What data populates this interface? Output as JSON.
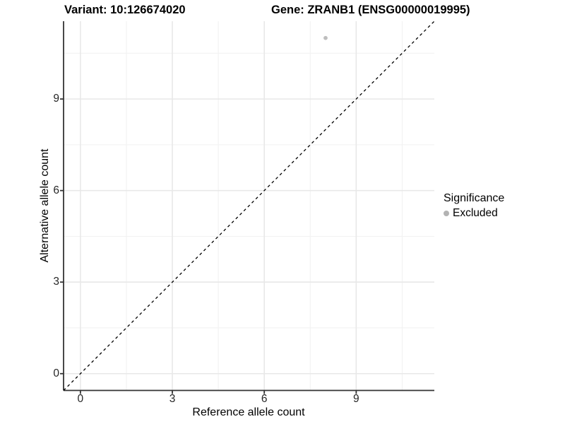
{
  "header": {
    "variant_title": "Variant: 10:126674020",
    "gene_title": "Gene: ZRANB1 (ENSG00000019995)"
  },
  "chart_data": {
    "type": "scatter",
    "title": "Variant: 10:126674020   Gene: ZRANB1 (ENSG00000019995)",
    "xlabel": "Reference allele count",
    "ylabel": "Alternative allele count",
    "xlim": [
      -0.55,
      11.55
    ],
    "ylim": [
      -0.55,
      11.55
    ],
    "x_ticks": [
      0,
      3,
      6,
      9
    ],
    "y_ticks": [
      0,
      3,
      6,
      9
    ],
    "x_minor_ticks": [
      1.5,
      4.5,
      7.5,
      10.5
    ],
    "y_minor_ticks": [
      1.5,
      4.5,
      7.5,
      10.5
    ],
    "grid": true,
    "series": [
      {
        "name": "Excluded",
        "marker": "circle",
        "color": "#bebebe",
        "points": [
          {
            "x": 8,
            "y": 11
          }
        ]
      }
    ],
    "reference_line": {
      "type": "identity",
      "style": "dashed",
      "color": "#000000",
      "from": {
        "x": -0.55,
        "y": -0.55
      },
      "to": {
        "x": 11.55,
        "y": 11.55
      }
    },
    "legend": {
      "title": "Significance",
      "position": "right",
      "entries": [
        {
          "label": "Excluded",
          "color": "#b3b3b3",
          "marker": "circle"
        }
      ]
    }
  },
  "colors": {
    "background": "#ffffff",
    "grid_major": "#e8e8e8",
    "grid_minor": "#f2f2f2",
    "axis_line": "#333333",
    "tick_mark": "#333333",
    "tick_text": "#262626",
    "point": "#bebebe",
    "diagonal": "#000000"
  }
}
